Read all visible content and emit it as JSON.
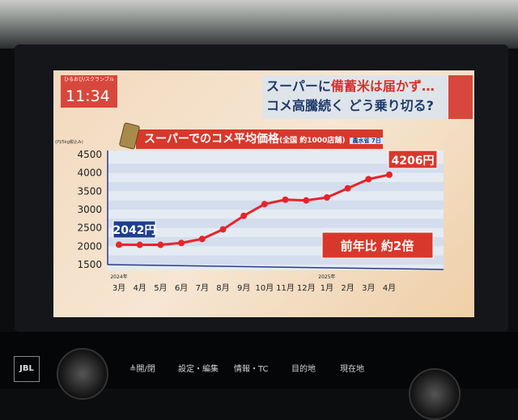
{
  "broadcast": {
    "channel": "ひるおび/スクランブル",
    "time": "11:34"
  },
  "headline": {
    "line1_a": "スーパーに",
    "line1_b": "備蓄米は届かず…",
    "line2": "コメ高騰続く どう乗り切る?"
  },
  "chart_title": {
    "main": "スーパーでのコメ平均価格",
    "sub": "(全国 約1000店舗)",
    "source": "農水省 7日"
  },
  "chart_data": {
    "type": "line",
    "ylabel": "(円/5kg税込み)",
    "ylim": [
      1500,
      4500
    ],
    "yticks": [
      "1500",
      "2000",
      "2500",
      "3000",
      "3500",
      "4000",
      "4500"
    ],
    "categories": [
      "3月",
      "4月",
      "5月",
      "6月",
      "7月",
      "8月",
      "9月",
      "10月",
      "11月",
      "12月",
      "1月",
      "2月",
      "3月",
      "4月"
    ],
    "year_labels": [
      {
        "label": "2024年",
        "at": "3月"
      },
      {
        "label": "2025年",
        "at": "1月"
      }
    ],
    "values": [
      2042,
      2040,
      2040,
      2090,
      2200,
      2460,
      2830,
      3150,
      3270,
      3250,
      3330,
      3580,
      3830,
      4206
    ],
    "series_color": "#e5252a",
    "grid": "horizontal bands",
    "annotations": {
      "start": "2042円",
      "end": "4206円",
      "badge": "前年比 約2倍"
    }
  },
  "console": {
    "brand": "JBL",
    "buttons": [
      "≜開/閉",
      "設定・編集",
      "情報・TC",
      "目的地",
      "現在地"
    ]
  }
}
